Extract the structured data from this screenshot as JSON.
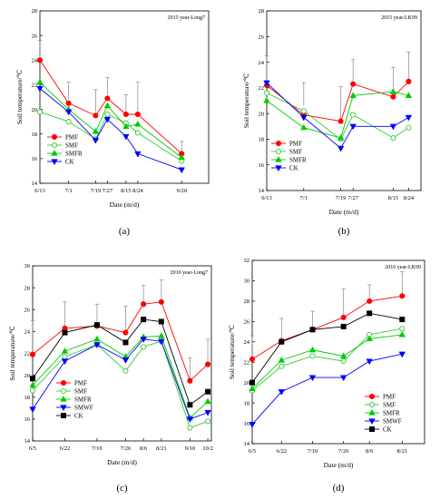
{
  "chart_data": [
    {
      "type": "line",
      "caption": "(a)",
      "title": "2015 year-Long7",
      "xlabel": "Date (m/d)",
      "ylabel": "Soil temperature/℃",
      "ylim": [
        14,
        28
      ],
      "yticks": [
        14,
        16,
        18,
        20,
        22,
        24,
        26,
        28
      ],
      "xlim": [
        0,
        100
      ],
      "x": [
        0,
        17,
        33,
        40,
        51,
        58,
        84
      ],
      "xticklabels": [
        "6/13",
        "7/1",
        "7/19",
        "7/27",
        "8/15",
        "8/24",
        "9/20"
      ],
      "error_bars": [
        {
          "x": 0,
          "low": 24.2,
          "high": 25.6
        },
        {
          "x": 17,
          "low": 20.8,
          "high": 22.2
        },
        {
          "x": 33,
          "low": 19.8,
          "high": 21.6
        },
        {
          "x": 40,
          "low": 21.2,
          "high": 22.6
        },
        {
          "x": 51,
          "low": 19.8,
          "high": 21.2
        },
        {
          "x": 58,
          "low": 19.8,
          "high": 22.2
        },
        {
          "x": 84,
          "low": 16.6,
          "high": 17.4
        }
      ],
      "series": [
        {
          "name": "PMF",
          "color": "#ff0000",
          "marker": "circle",
          "filled": true,
          "values": [
            24.0,
            20.5,
            19.5,
            20.9,
            19.6,
            19.6,
            16.4
          ]
        },
        {
          "name": "SMF",
          "color": "#33cc33",
          "marker": "circle",
          "filled": false,
          "values": [
            19.8,
            19.0,
            17.6,
            19.6,
            18.9,
            18.1,
            15.8
          ]
        },
        {
          "name": "SMFR",
          "color": "#00cc00",
          "marker": "triangle-up",
          "filled": true,
          "values": [
            22.2,
            20.0,
            18.2,
            20.3,
            18.6,
            18.8,
            16.1
          ]
        },
        {
          "name": "CK",
          "color": "#0000ff",
          "marker": "triangle-down",
          "filled": true,
          "values": [
            21.7,
            19.8,
            17.5,
            19.2,
            17.8,
            16.4,
            15.1
          ]
        }
      ]
    },
    {
      "type": "line",
      "caption": "(b)",
      "title": "2015 year-LK99",
      "xlabel": "Date (m/d)",
      "ylabel": "Soil temperature/℃",
      "ylim": [
        14,
        28
      ],
      "yticks": [
        14,
        16,
        18,
        20,
        22,
        24,
        26,
        28
      ],
      "xlim": [
        0,
        100
      ],
      "x": [
        0,
        24,
        48,
        56,
        82,
        92
      ],
      "xticklabels": [
        "6/13",
        "7/1",
        "7/19",
        "7/27",
        "8/15",
        "8/24"
      ],
      "error_bars": [
        {
          "x": 0,
          "low": 22.4,
          "high": 24.5
        },
        {
          "x": 24,
          "low": 20.6,
          "high": 22.4
        },
        {
          "x": 48,
          "low": 19.4,
          "high": 22.1
        },
        {
          "x": 56,
          "low": 22.4,
          "high": 24.2
        },
        {
          "x": 82,
          "low": 21.3,
          "high": 23.6
        },
        {
          "x": 92,
          "low": 22.5,
          "high": 24.8
        }
      ],
      "series": [
        {
          "name": "PMF",
          "color": "#ff0000",
          "marker": "circle",
          "filled": true,
          "values": [
            22.2,
            19.9,
            19.4,
            22.3,
            21.3,
            22.5
          ]
        },
        {
          "name": "SMF",
          "color": "#33cc33",
          "marker": "circle",
          "filled": false,
          "values": [
            21.6,
            20.2,
            18.0,
            19.9,
            18.1,
            18.9
          ]
        },
        {
          "name": "SMFR",
          "color": "#00cc00",
          "marker": "triangle-up",
          "filled": true,
          "values": [
            21.0,
            18.9,
            18.1,
            21.4,
            21.7,
            21.4
          ]
        },
        {
          "name": "CK",
          "color": "#0000ff",
          "marker": "triangle-down",
          "filled": true,
          "values": [
            22.4,
            19.7,
            17.3,
            19.0,
            19.0,
            19.7
          ]
        }
      ]
    },
    {
      "type": "line",
      "caption": "(c)",
      "title": "2016 year-Long7",
      "xlabel": "Date (m/d)",
      "ylabel": "Soil temperature/℃",
      "ylim": [
        14,
        30
      ],
      "yticks": [
        14,
        16,
        18,
        20,
        22,
        24,
        26,
        28,
        30
      ],
      "xlim": [
        0,
        100
      ],
      "x": [
        0,
        18,
        36,
        52,
        62,
        72,
        88,
        98
      ],
      "xticklabels": [
        "6/5",
        "6/22",
        "7/10",
        "7/26",
        "8/6",
        "8/21",
        "9/10",
        "10/2"
      ],
      "error_bars": [
        {
          "x": 0,
          "low": 22.0,
          "high": 25.0
        },
        {
          "x": 18,
          "low": 24.4,
          "high": 26.7
        },
        {
          "x": 36,
          "low": 24.7,
          "high": 26.5
        },
        {
          "x": 52,
          "low": 24.0,
          "high": 26.3
        },
        {
          "x": 62,
          "low": 26.5,
          "high": 28.2
        },
        {
          "x": 72,
          "low": 26.8,
          "high": 28.7
        },
        {
          "x": 88,
          "low": 19.6,
          "high": 21.6
        },
        {
          "x": 98,
          "low": 21.1,
          "high": 23.3
        }
      ],
      "series": [
        {
          "name": "PMF",
          "color": "#ff0000",
          "marker": "circle",
          "filled": true,
          "values": [
            21.9,
            24.3,
            24.5,
            23.9,
            26.5,
            26.7,
            19.5,
            21.0
          ]
        },
        {
          "name": "SMF",
          "color": "#33cc33",
          "marker": "circle",
          "filled": false,
          "values": [
            18.6,
            21.7,
            22.8,
            20.4,
            22.6,
            23.1,
            15.2,
            15.8
          ]
        },
        {
          "name": "SMFR",
          "color": "#00cc00",
          "marker": "triangle-up",
          "filled": true,
          "values": [
            19.1,
            22.2,
            23.3,
            21.7,
            23.5,
            23.6,
            16.1,
            17.6
          ]
        },
        {
          "name": "SMWF",
          "color": "#0000ff",
          "marker": "triangle-down",
          "filled": true,
          "values": [
            16.9,
            21.3,
            22.8,
            21.4,
            23.3,
            23.1,
            16.0,
            16.6
          ]
        },
        {
          "name": "CK",
          "color": "#000000",
          "marker": "square",
          "filled": true,
          "values": [
            19.7,
            23.9,
            24.6,
            23.0,
            25.1,
            24.9,
            17.3,
            18.5
          ]
        }
      ]
    },
    {
      "type": "line",
      "caption": "(d)",
      "title": "2016 year-LK99",
      "xlabel": "Date (m/d)",
      "ylabel": "Soil temperature/℃",
      "ylim": [
        14,
        32
      ],
      "yticks": [
        14,
        16,
        18,
        20,
        22,
        24,
        26,
        28,
        30,
        32
      ],
      "xlim": [
        0,
        100
      ],
      "x": [
        0,
        17,
        35,
        53,
        68,
        87
      ],
      "xticklabels": [
        "6/5",
        "6/22",
        "7/10",
        "7/26",
        "8/6",
        "8/21"
      ],
      "error_bars": [
        {
          "x": 0,
          "low": 22.4,
          "high": 24.6
        },
        {
          "x": 17,
          "low": 24.3,
          "high": 26.3
        },
        {
          "x": 35,
          "low": 25.3,
          "high": 27.0
        },
        {
          "x": 53,
          "low": 26.5,
          "high": 29.2
        },
        {
          "x": 68,
          "low": 28.0,
          "high": 29.6
        },
        {
          "x": 87,
          "low": 28.5,
          "high": 30.9
        }
      ],
      "series": [
        {
          "name": "PMF",
          "color": "#ff0000",
          "marker": "circle",
          "filled": true,
          "values": [
            22.3,
            24.1,
            25.2,
            26.4,
            28.0,
            28.5
          ]
        },
        {
          "name": "SMF",
          "color": "#33cc33",
          "marker": "circle",
          "filled": false,
          "values": [
            19.2,
            21.6,
            22.6,
            22.1,
            24.7,
            25.3
          ]
        },
        {
          "name": "SMFR",
          "color": "#00cc00",
          "marker": "triangle-up",
          "filled": true,
          "values": [
            19.4,
            22.2,
            23.2,
            22.6,
            24.3,
            24.7
          ]
        },
        {
          "name": "SMWF",
          "color": "#0000ff",
          "marker": "triangle-down",
          "filled": true,
          "values": [
            15.9,
            19.1,
            20.5,
            20.5,
            22.1,
            22.8
          ]
        },
        {
          "name": "CK",
          "color": "#000000",
          "marker": "square",
          "filled": true,
          "values": [
            20.0,
            24.0,
            25.2,
            25.5,
            26.8,
            26.2
          ]
        }
      ]
    }
  ]
}
